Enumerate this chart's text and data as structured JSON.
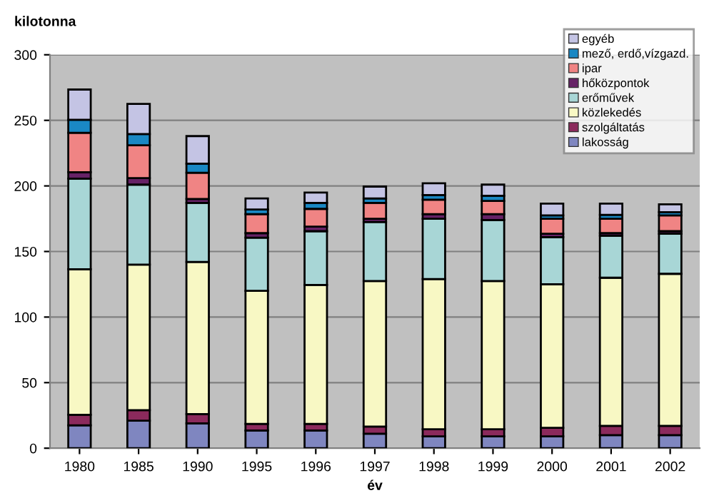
{
  "chart_data": {
    "type": "bar",
    "stacked": true,
    "xlabel": "év",
    "ylabel": "kilotonna",
    "categories": [
      "1980",
      "1985",
      "1990",
      "1995",
      "1996",
      "1997",
      "1998",
      "1999",
      "2000",
      "2001",
      "2002"
    ],
    "series": [
      {
        "name": "lakosság",
        "color": "#7f86c0",
        "values": [
          17.5,
          21,
          19,
          13.5,
          13.5,
          11,
          9,
          9,
          9,
          10,
          10
        ]
      },
      {
        "name": "szolgáltatás",
        "color": "#8b2a5c",
        "values": [
          8,
          8,
          7,
          5,
          5,
          5.5,
          5.5,
          5.5,
          6.5,
          7,
          7
        ]
      },
      {
        "name": "közlekedés",
        "color": "#f8f8c4",
        "values": [
          111,
          111,
          116,
          101.5,
          106,
          111,
          114.5,
          113,
          109.5,
          113,
          116
        ]
      },
      {
        "name": "erőművek",
        "color": "#a8d6d6",
        "values": [
          69,
          61,
          45,
          40.5,
          41,
          45,
          46,
          46.5,
          36,
          32,
          30.5
        ]
      },
      {
        "name": "hőközpontok",
        "color": "#662266",
        "values": [
          5,
          5,
          3,
          3.5,
          3.5,
          2.5,
          3.5,
          4.5,
          2.5,
          2,
          2
        ]
      },
      {
        "name": "ipar",
        "color": "#f08484",
        "values": [
          30,
          25,
          20,
          14.5,
          13.5,
          12,
          11,
          10,
          11.5,
          11,
          12
        ]
      },
      {
        "name": "mező, erdő,vízgazd.",
        "color": "#1a88c4",
        "values": [
          10,
          8.5,
          7,
          3.5,
          4.5,
          3.5,
          3.5,
          4,
          2.5,
          3,
          2.5
        ]
      },
      {
        "name": "egyéb",
        "color": "#c4c4e4",
        "values": [
          23,
          23,
          21,
          8.5,
          8,
          9,
          9,
          8.5,
          9,
          8.5,
          6
        ]
      }
    ],
    "ylim": [
      0,
      300
    ],
    "yticks": [
      0,
      50,
      100,
      150,
      200,
      250,
      300
    ],
    "grid": "y",
    "legend": "top right"
  }
}
